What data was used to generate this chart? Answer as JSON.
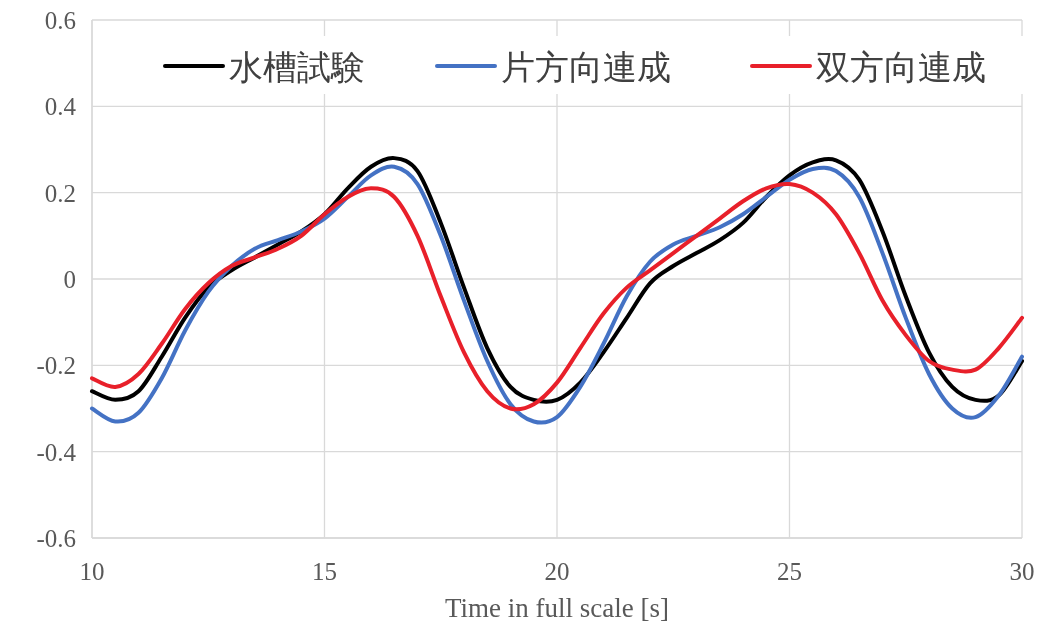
{
  "chart_data": {
    "type": "line",
    "xlabel": "Time in full scale [s]",
    "xlim": [
      10,
      30
    ],
    "xticks": [
      10,
      15,
      20,
      25,
      30
    ],
    "ylim": [
      -0.6,
      0.6
    ],
    "yticks": [
      -0.6,
      -0.4,
      -0.2,
      0,
      0.2,
      0.4,
      0.6
    ],
    "grid": true,
    "legend": "top",
    "marker": "none",
    "line_style": "solid",
    "x": [
      10,
      10.5,
      11,
      11.5,
      12,
      12.5,
      13,
      13.5,
      14,
      14.5,
      15,
      15.5,
      16,
      16.5,
      17,
      17.5,
      18,
      18.5,
      19,
      19.5,
      20,
      20.5,
      21,
      21.5,
      22,
      22.5,
      23,
      23.5,
      24,
      24.5,
      25,
      25.5,
      26,
      26.5,
      27,
      27.5,
      28,
      28.5,
      29,
      29.5,
      30
    ],
    "series": [
      {
        "name": "水槽試験",
        "color": "#000000",
        "values": [
          -0.26,
          -0.28,
          -0.26,
          -0.18,
          -0.09,
          -0.02,
          0.02,
          0.05,
          0.08,
          0.11,
          0.15,
          0.21,
          0.26,
          0.28,
          0.25,
          0.13,
          -0.02,
          -0.16,
          -0.25,
          -0.28,
          -0.28,
          -0.24,
          -0.17,
          -0.09,
          -0.01,
          0.03,
          0.06,
          0.09,
          0.13,
          0.19,
          0.24,
          0.27,
          0.275,
          0.23,
          0.11,
          -0.04,
          -0.17,
          -0.25,
          -0.28,
          -0.27,
          -0.19
        ]
      },
      {
        "name": "片方向連成",
        "color": "#4472c4",
        "values": [
          -0.3,
          -0.33,
          -0.31,
          -0.23,
          -0.12,
          -0.03,
          0.03,
          0.07,
          0.09,
          0.11,
          0.14,
          0.19,
          0.24,
          0.26,
          0.22,
          0.1,
          -0.05,
          -0.19,
          -0.29,
          -0.33,
          -0.32,
          -0.25,
          -0.15,
          -0.04,
          0.04,
          0.08,
          0.1,
          0.12,
          0.15,
          0.19,
          0.23,
          0.255,
          0.25,
          0.19,
          0.06,
          -0.09,
          -0.22,
          -0.3,
          -0.32,
          -0.27,
          -0.18
        ]
      },
      {
        "name": "双方向連成",
        "color": "#e8202a",
        "values": [
          -0.23,
          -0.25,
          -0.22,
          -0.15,
          -0.07,
          -0.01,
          0.03,
          0.05,
          0.07,
          0.1,
          0.15,
          0.19,
          0.21,
          0.19,
          0.1,
          -0.04,
          -0.17,
          -0.26,
          -0.3,
          -0.29,
          -0.24,
          -0.16,
          -0.08,
          -0.02,
          0.02,
          0.06,
          0.1,
          0.14,
          0.18,
          0.21,
          0.22,
          0.2,
          0.15,
          0.06,
          -0.05,
          -0.13,
          -0.19,
          -0.21,
          -0.21,
          -0.16,
          -0.09
        ]
      }
    ]
  }
}
